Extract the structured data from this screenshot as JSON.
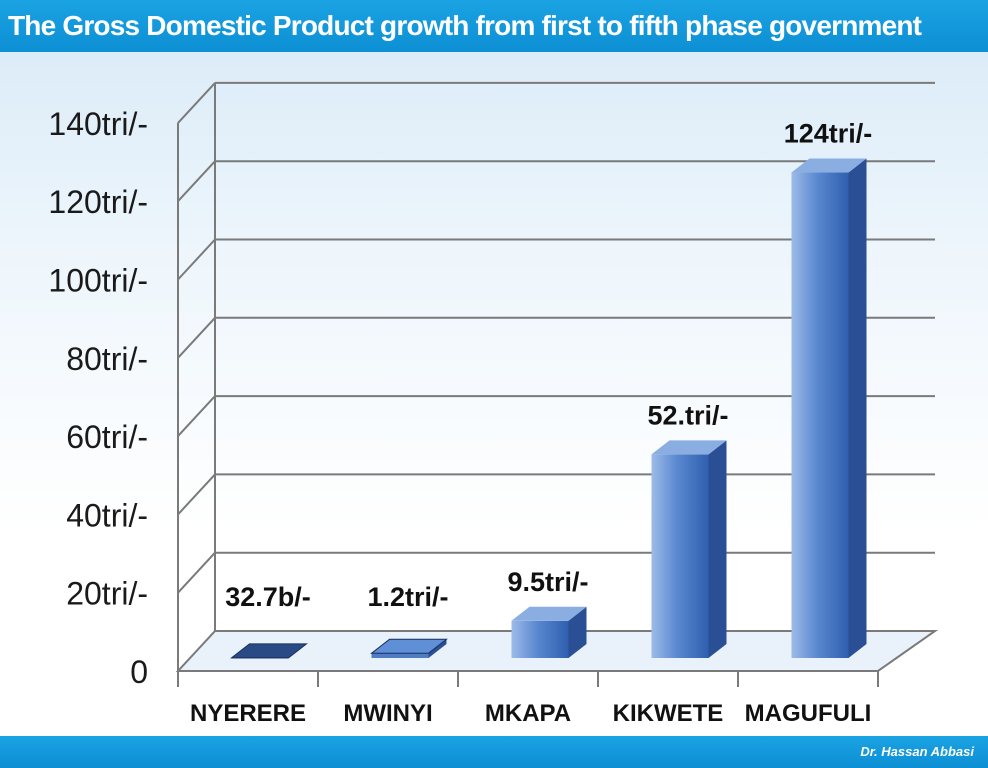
{
  "header": {
    "title": "The Gross Domestic Product growth from first to fifth phase government"
  },
  "footer": {
    "credit": "Dr. Hassan Abbasi"
  },
  "colors": {
    "banner": "#1199dd",
    "bar_front": "#3d6fbe",
    "bar_top": "#7fa3dc",
    "bar_side": "#2a4f94",
    "grid": "#7a7a7a"
  },
  "chart_data": {
    "type": "bar",
    "categories": [
      "NYERERE",
      "MWINYI",
      "MKAPA",
      "KIKWETE",
      "MAGUFULI"
    ],
    "values": [
      0.0327,
      1.2,
      9.5,
      52,
      124
    ],
    "data_labels": [
      "32.7b/-",
      "1.2tri/-",
      "9.5tri/-",
      "52.tri/-",
      "124tri/-"
    ],
    "y_ticks": [
      "0",
      "20tri/-",
      "40tri/-",
      "60tri/-",
      "80tri/-",
      "100tri/-",
      "120tri/-",
      "140tri/-"
    ],
    "ylim": [
      0,
      140
    ],
    "grid": true,
    "legend": "none"
  }
}
